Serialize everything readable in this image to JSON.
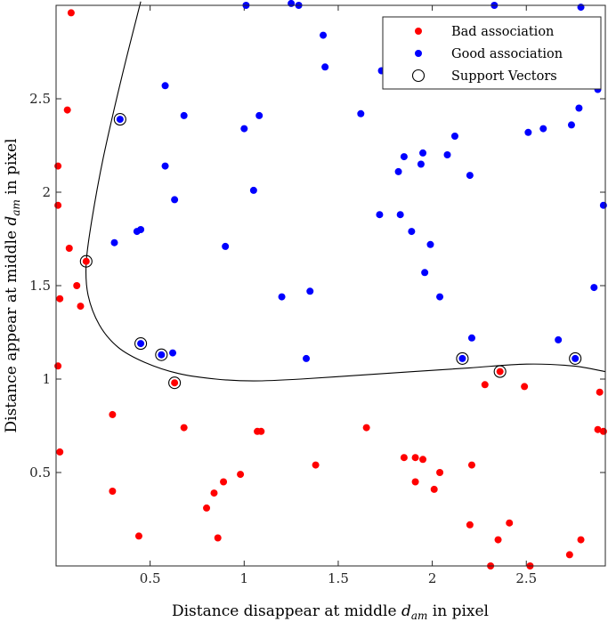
{
  "chart_data": {
    "type": "scatter",
    "xlabel": "Distance disappear at middle",
    "xlabel_math": {
      "base": "d",
      "sub": "am"
    },
    "xlabel_suffix": "in pixel",
    "ylabel": "Distance appear at middle",
    "ylabel_math": {
      "base": "d",
      "sub": "am"
    },
    "ylabel_suffix": "in pixel",
    "xlim": [
      0,
      2.92
    ],
    "ylim": [
      0,
      3.0
    ],
    "xticks": [
      0.5,
      1,
      1.5,
      2,
      2.5
    ],
    "xtick_labels": [
      "0.5",
      "1",
      "1.5",
      "2",
      "2.5"
    ],
    "yticks": [
      0.5,
      1,
      1.5,
      2,
      2.5
    ],
    "ytick_labels": [
      "0.5",
      "1",
      "1.5",
      "2",
      "2.5"
    ],
    "grid": false,
    "legend_position": "top-right",
    "series": [
      {
        "name": "Bad association",
        "color": "#ff0000",
        "marker": "filled-circle",
        "points": [
          [
            0.08,
            2.96
          ],
          [
            0.06,
            2.44
          ],
          [
            0.01,
            2.14
          ],
          [
            0.01,
            1.93
          ],
          [
            0.07,
            1.7
          ],
          [
            0.11,
            1.5
          ],
          [
            0.13,
            1.39
          ],
          [
            0.02,
            1.43
          ],
          [
            0.01,
            1.07
          ],
          [
            0.02,
            0.61
          ],
          [
            0.16,
            1.63
          ],
          [
            0.3,
            0.81
          ],
          [
            0.3,
            0.4
          ],
          [
            0.44,
            0.16
          ],
          [
            0.63,
            0.98
          ],
          [
            0.68,
            0.74
          ],
          [
            0.8,
            0.31
          ],
          [
            0.84,
            0.39
          ],
          [
            0.86,
            0.15
          ],
          [
            0.89,
            0.45
          ],
          [
            0.98,
            0.49
          ],
          [
            1.07,
            0.72
          ],
          [
            1.09,
            0.72
          ],
          [
            1.38,
            0.54
          ],
          [
            1.65,
            0.74
          ],
          [
            1.85,
            0.58
          ],
          [
            1.91,
            0.58
          ],
          [
            1.91,
            0.45
          ],
          [
            1.95,
            0.57
          ],
          [
            2.01,
            0.41
          ],
          [
            2.04,
            0.5
          ],
          [
            2.2,
            0.22
          ],
          [
            2.21,
            0.54
          ],
          [
            2.28,
            0.97
          ],
          [
            2.31,
            0.0
          ],
          [
            2.35,
            0.14
          ],
          [
            2.36,
            1.04
          ],
          [
            2.41,
            0.23
          ],
          [
            2.49,
            0.96
          ],
          [
            2.52,
            0.0
          ],
          [
            2.73,
            0.06
          ],
          [
            2.79,
            0.14
          ],
          [
            2.88,
            0.73
          ],
          [
            2.89,
            0.93
          ],
          [
            2.91,
            0.72
          ]
        ]
      },
      {
        "name": "Good association",
        "color": "#0000ff",
        "marker": "filled-circle",
        "points": [
          [
            0.34,
            2.39
          ],
          [
            0.31,
            1.73
          ],
          [
            0.43,
            1.79
          ],
          [
            0.45,
            1.8
          ],
          [
            0.45,
            1.19
          ],
          [
            0.56,
            1.13
          ],
          [
            0.58,
            2.57
          ],
          [
            0.58,
            2.14
          ],
          [
            0.62,
            1.14
          ],
          [
            0.63,
            1.96
          ],
          [
            0.68,
            2.41
          ],
          [
            0.9,
            1.71
          ],
          [
            1.0,
            2.34
          ],
          [
            1.01,
            3.0
          ],
          [
            1.05,
            2.01
          ],
          [
            1.08,
            2.41
          ],
          [
            1.2,
            1.44
          ],
          [
            1.25,
            3.01
          ],
          [
            1.29,
            3.0
          ],
          [
            1.33,
            1.11
          ],
          [
            1.35,
            1.47
          ],
          [
            1.42,
            2.84
          ],
          [
            1.43,
            2.67
          ],
          [
            1.62,
            2.42
          ],
          [
            1.72,
            1.88
          ],
          [
            1.73,
            2.65
          ],
          [
            1.82,
            2.11
          ],
          [
            1.83,
            1.88
          ],
          [
            1.85,
            2.19
          ],
          [
            1.89,
            1.79
          ],
          [
            1.94,
            2.15
          ],
          [
            1.95,
            2.21
          ],
          [
            1.96,
            1.57
          ],
          [
            1.99,
            1.72
          ],
          [
            2.04,
            1.44
          ],
          [
            2.08,
            2.2
          ],
          [
            2.12,
            2.3
          ],
          [
            2.16,
            1.11
          ],
          [
            2.2,
            2.09
          ],
          [
            2.21,
            1.22
          ],
          [
            2.33,
            3.0
          ],
          [
            2.51,
            2.32
          ],
          [
            2.59,
            2.34
          ],
          [
            2.67,
            1.21
          ],
          [
            2.74,
            2.36
          ],
          [
            2.76,
            1.11
          ],
          [
            2.78,
            2.45
          ],
          [
            2.79,
            2.99
          ],
          [
            2.86,
            1.49
          ],
          [
            2.88,
            2.55
          ],
          [
            2.91,
            1.93
          ]
        ]
      },
      {
        "name": "Support Vectors",
        "color": "#000000",
        "marker": "open-circle",
        "points": [
          [
            0.34,
            2.39
          ],
          [
            0.16,
            1.63
          ],
          [
            0.45,
            1.19
          ],
          [
            0.56,
            1.13
          ],
          [
            0.63,
            0.98
          ],
          [
            2.16,
            1.11
          ],
          [
            2.36,
            1.04
          ],
          [
            2.76,
            1.11
          ]
        ]
      }
    ],
    "decision_boundary": {
      "color": "#000000",
      "points": [
        [
          0.45,
          3.02
        ],
        [
          0.35,
          2.62
        ],
        [
          0.25,
          2.18
        ],
        [
          0.19,
          1.85
        ],
        [
          0.16,
          1.62
        ],
        [
          0.17,
          1.45
        ],
        [
          0.23,
          1.29
        ],
        [
          0.33,
          1.17
        ],
        [
          0.47,
          1.09
        ],
        [
          0.65,
          1.03
        ],
        [
          0.85,
          1.0
        ],
        [
          1.05,
          0.99
        ],
        [
          1.3,
          1.0
        ],
        [
          1.6,
          1.02
        ],
        [
          1.9,
          1.04
        ],
        [
          2.2,
          1.06
        ],
        [
          2.5,
          1.08
        ],
        [
          2.75,
          1.07
        ],
        [
          2.92,
          1.04
        ]
      ]
    }
  }
}
